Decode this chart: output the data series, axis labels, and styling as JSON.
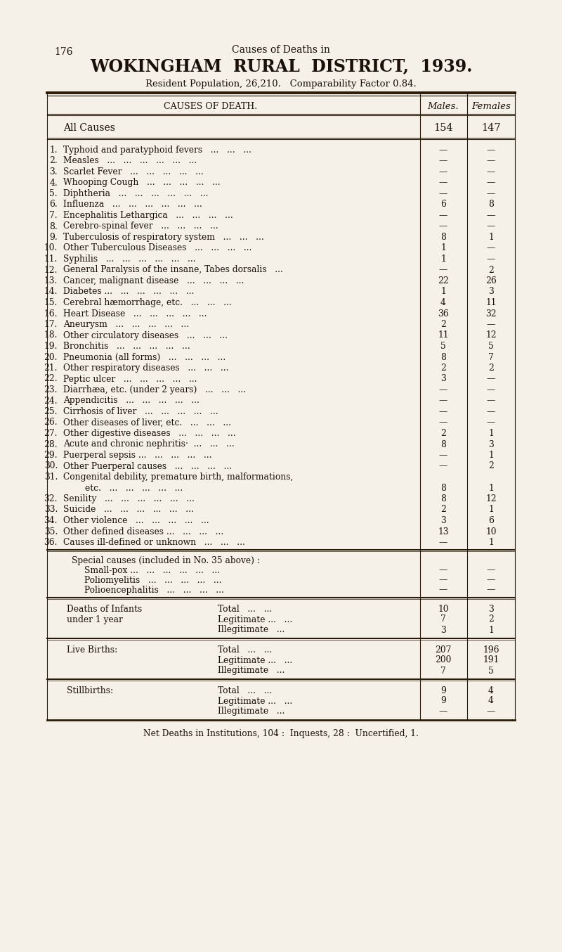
{
  "page_number": "176",
  "header_line1": "Causes of Deaths in",
  "header_line2": "WOKINGHAM  RURAL  DISTRICT,  1939.",
  "header_line3": "Resident Population, 26,210.   Comparability Factor 0.84.",
  "col_header_cause": "CAUSES OF DEATH.",
  "col_header_males": "Males.",
  "col_header_females": "Females",
  "all_causes_label": "All Causes",
  "all_causes_males": "154",
  "all_causes_females": "147",
  "rows": [
    {
      "num": "1.",
      "cause": "Typhoid and paratyphoid fevers   ...   ...   ...",
      "males": "—",
      "females": "—"
    },
    {
      "num": "2.",
      "cause": "Measles   ...   ...   ...   ...   ...   ...",
      "males": "—",
      "females": "—"
    },
    {
      "num": "3.",
      "cause": "Scarlet Fever   ...   ...   ...   ...   ...",
      "males": "—",
      "females": "—"
    },
    {
      "num": "4.",
      "cause": "Whooping Cough   ...   ...   ...   ...   ...",
      "males": "—",
      "females": "—"
    },
    {
      "num": "5.",
      "cause": "Diphtheria   ...   ...   ...   ...   ...   ...",
      "males": "—",
      "females": "—"
    },
    {
      "num": "6.",
      "cause": "Influenza   ...   ...   ...   ...   ...   ...",
      "males": "6",
      "females": "8"
    },
    {
      "num": "7.",
      "cause": "Encephalitis Lethargica   ...   ...   ...   ...",
      "males": "—",
      "females": "—"
    },
    {
      "num": "8.",
      "cause": "Cerebro-spinal fever   ...   ...   ...   ...",
      "males": "—",
      "females": "—"
    },
    {
      "num": "9.",
      "cause": "Tuberculosis of respiratory system   ...   ...   ...",
      "males": "8",
      "females": "1"
    },
    {
      "num": "10.",
      "cause": "Other Tuberculous Diseases   ...   ...   ...   ...",
      "males": "1",
      "females": "—"
    },
    {
      "num": "11.",
      "cause": "Syphilis   ...   ...   ...   ...   ...   ...",
      "males": "1",
      "females": "—"
    },
    {
      "num": "12.",
      "cause": "General Paralysis of the insane, Tabes dorsalis   ...",
      "males": "—",
      "females": "2"
    },
    {
      "num": "13.",
      "cause": "Cancer, malignant disease   ...   ...   ...   ...",
      "males": "22",
      "females": "26"
    },
    {
      "num": "14.",
      "cause": "Diabetes ...   ...   ...   ...   ...   ...",
      "males": "1",
      "females": "3"
    },
    {
      "num": "15.",
      "cause": "Cerebral hæmorrhage, etc.   ...   ...   ...",
      "males": "4",
      "females": "11"
    },
    {
      "num": "16.",
      "cause": "Heart Disease   ...   ...   ...   ...   ...",
      "males": "36",
      "females": "32"
    },
    {
      "num": "17.",
      "cause": "Aneurysm   ...   ...   ...   ...   ...",
      "males": "2",
      "females": "—"
    },
    {
      "num": "18.",
      "cause": "Other circulatory diseases   ...   ...   ...",
      "males": "11",
      "females": "12"
    },
    {
      "num": "19.",
      "cause": "Bronchitis   ...   ...   ...   ...   ...",
      "males": "5",
      "females": "5"
    },
    {
      "num": "20.",
      "cause": "Pneumonia (all forms)   ...   ...   ...   ...",
      "males": "8",
      "females": "7"
    },
    {
      "num": "21.",
      "cause": "Other respiratory diseases   ...   ...   ...",
      "males": "2",
      "females": "2"
    },
    {
      "num": "22.",
      "cause": "Peptic ulcer   ...   ...   ...   ...   ...",
      "males": "3",
      "females": "—"
    },
    {
      "num": "23.",
      "cause": "Diarrhæa, etc. (under 2 years)   ...   ...   ...",
      "males": "—",
      "females": "—"
    },
    {
      "num": "24.",
      "cause": "Appendicitis   ...   ...   ...   ...   ...",
      "males": "—",
      "females": "—"
    },
    {
      "num": "25.",
      "cause": "Cirrhosis of liver   ...   ...   ...   ...   ...",
      "males": "—",
      "females": "—"
    },
    {
      "num": "26.",
      "cause": "Other diseases of liver, etc.   ...   ...   ...",
      "males": "—",
      "females": "—"
    },
    {
      "num": "27.",
      "cause": "Other digestive diseases   ...   ...   ...   ...",
      "males": "2",
      "females": "1"
    },
    {
      "num": "28.",
      "cause": "Acute and chronic nephritis·  ...   ...   ...",
      "males": "8",
      "females": "3"
    },
    {
      "num": "29.",
      "cause": "Puerperal sepsis ...   ...   ...   ...   ...",
      "males": "—",
      "females": "1"
    },
    {
      "num": "30.",
      "cause": "Other Puerperal causes   ...   ...   ...   ...",
      "males": "—",
      "females": "2"
    },
    {
      "num": "31.",
      "cause": "Congenital debility, premature birth, malformations,",
      "cause2": "        etc.   ...   ...   ...   ...   ...",
      "males": "8",
      "females": "1"
    },
    {
      "num": "32.",
      "cause": "Senility   ...   ...   ...   ...   ...   ...",
      "males": "8",
      "females": "12"
    },
    {
      "num": "33.",
      "cause": "Suicide   ...   ...   ...   ...   ...   ...",
      "males": "2",
      "females": "1"
    },
    {
      "num": "34.",
      "cause": "Other violence   ...   ...   ...   ...   ...",
      "males": "3",
      "females": "6"
    },
    {
      "num": "35.",
      "cause": "Other defined diseases ...   ...   ...   ...",
      "males": "13",
      "females": "10"
    },
    {
      "num": "36.",
      "cause": "Causes ill-defined or unknown   ...   ...   ...",
      "males": "—",
      "females": "1"
    }
  ],
  "special_section_header": "Special causes (included in No. 35 above) :",
  "special_rows": [
    {
      "cause": "Small-pox ...   ...   ...   ...   ...   ...",
      "males": "—",
      "females": "—"
    },
    {
      "cause": "Poliomyelitis   ...   ...   ...   ...   ...",
      "males": "—",
      "females": "—"
    },
    {
      "cause": "Polioencephalitis   ...   ...   ...   ...",
      "males": "—",
      "females": "—"
    }
  ],
  "deaths_infants_label": "Deaths of Infants",
  "deaths_infants_sub": "under 1 year",
  "deaths_infants": [
    {
      "sub": "Total   ...   ...",
      "males": "10",
      "females": "3"
    },
    {
      "sub": "Legitimate ...   ...",
      "males": "7",
      "females": "2"
    },
    {
      "sub": "Illegitimate   ...",
      "males": "3",
      "females": "1"
    }
  ],
  "live_births_label": "Live Births:",
  "live_births": [
    {
      "sub": "Total   ...   ...",
      "males": "207",
      "females": "196"
    },
    {
      "sub": "Legitimate ...   ...",
      "males": "200",
      "females": "191"
    },
    {
      "sub": "Illegitimate   ...",
      "males": "7",
      "females": "5"
    }
  ],
  "stillbirths_label": "Stillbirths:",
  "stillbirths": [
    {
      "sub": "Total   ...   ...",
      "males": "9",
      "females": "4"
    },
    {
      "sub": "Legitimate ...   ...",
      "males": "9",
      "females": "4"
    },
    {
      "sub": "Illegitimate   ...",
      "males": "—",
      "females": "—"
    }
  ],
  "footer": "Net Deaths in Institutions, 104 :  Inquests, 28 :  Uncertified, 1.",
  "bg_color": "#f5f0e8",
  "text_color": "#1a1008",
  "line_color": "#2a1a08"
}
